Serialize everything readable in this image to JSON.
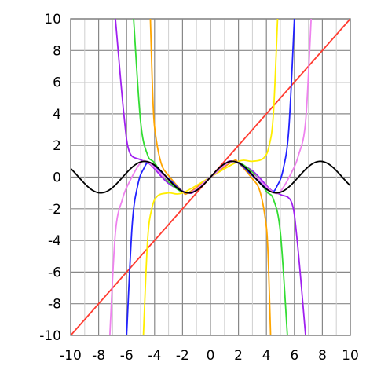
{
  "chart_data": {
    "type": "line",
    "title": "",
    "xlabel": "",
    "ylabel": "",
    "xlim": [
      -10,
      10
    ],
    "ylim": [
      -10,
      10
    ],
    "grid": true,
    "legend": "none",
    "x_ticks": [
      "-10",
      "-8",
      "-6",
      "-4",
      "-2",
      "0",
      "2",
      "4",
      "6",
      "8",
      "10"
    ],
    "y_ticks": [
      "10",
      "8",
      "6",
      "4",
      "2",
      "0",
      "-2",
      "-4",
      "-6",
      "-8",
      "-10"
    ],
    "series": [
      {
        "color": "#ff3b30",
        "points": [
          [
            -10,
            -10
          ],
          [
            -6,
            -6
          ],
          [
            -2,
            -2
          ],
          [
            0,
            0
          ],
          [
            2,
            2
          ],
          [
            6,
            6
          ],
          [
            10,
            10
          ]
        ]
      },
      {
        "color": "#a020f0",
        "points": [
          [
            -6.8,
            10
          ],
          [
            -6.2,
            4
          ],
          [
            -5.8,
            1.6
          ],
          [
            -5,
            1.1
          ],
          [
            -4.3,
            0.8
          ],
          [
            -3,
            -0.4
          ],
          [
            -1.6,
            -1
          ],
          [
            -1,
            -0.8
          ],
          [
            0,
            0
          ],
          [
            1,
            0.8
          ],
          [
            1.6,
            1
          ],
          [
            3,
            0.4
          ],
          [
            4.3,
            -0.8
          ],
          [
            5,
            -1.1
          ],
          [
            5.8,
            -1.6
          ],
          [
            6.2,
            -4
          ],
          [
            6.8,
            -10
          ]
        ]
      },
      {
        "color": "#33dd33",
        "points": [
          [
            -5.5,
            10
          ],
          [
            -5,
            3.5
          ],
          [
            -4.5,
            1.4
          ],
          [
            -4,
            0.9
          ],
          [
            -3,
            -0.3
          ],
          [
            -1.6,
            -1
          ],
          [
            0,
            0
          ],
          [
            1.6,
            1
          ],
          [
            3,
            0.3
          ],
          [
            4,
            -0.9
          ],
          [
            4.5,
            -1.4
          ],
          [
            5,
            -3.5
          ],
          [
            5.5,
            -10
          ]
        ]
      },
      {
        "color": "#ffa500",
        "points": [
          [
            -4.3,
            10
          ],
          [
            -4.1,
            4.5
          ],
          [
            -3.9,
            2.5
          ],
          [
            -3.5,
            0.8
          ],
          [
            -3,
            0.1
          ],
          [
            -2,
            -0.9
          ],
          [
            -1.6,
            -1
          ],
          [
            0,
            0
          ],
          [
            1.6,
            1
          ],
          [
            2,
            0.9
          ],
          [
            3,
            -0.1
          ],
          [
            3.5,
            -0.8
          ],
          [
            3.9,
            -2.5
          ],
          [
            4.1,
            -4.5
          ],
          [
            4.3,
            -10
          ]
        ]
      },
      {
        "color": "#ffee00",
        "points": [
          [
            -4.8,
            -10
          ],
          [
            -4.5,
            -4
          ],
          [
            -4.2,
            -2
          ],
          [
            -3.8,
            -1.2
          ],
          [
            -3,
            -1
          ],
          [
            -2,
            -1
          ],
          [
            0,
            0
          ],
          [
            2,
            1
          ],
          [
            3,
            1
          ],
          [
            3.8,
            1.2
          ],
          [
            4.2,
            2
          ],
          [
            4.5,
            4
          ],
          [
            4.8,
            10
          ]
        ]
      },
      {
        "color": "#2222ff",
        "points": [
          [
            -6,
            -10
          ],
          [
            -5.6,
            -3
          ],
          [
            -5.2,
            -0.5
          ],
          [
            -4.8,
            0.5
          ],
          [
            -4.3,
            0.9
          ],
          [
            -3,
            -0.1
          ],
          [
            -1.6,
            -1
          ],
          [
            0,
            0
          ],
          [
            1.6,
            1
          ],
          [
            3,
            0.1
          ],
          [
            4.3,
            -0.9
          ],
          [
            4.8,
            -0.5
          ],
          [
            5.2,
            0.5
          ],
          [
            5.6,
            3
          ],
          [
            6,
            10
          ]
        ]
      },
      {
        "color": "#ee82ee",
        "points": [
          [
            -7.2,
            -10
          ],
          [
            -6.8,
            -3.5
          ],
          [
            -6.3,
            -1.4
          ],
          [
            -5.8,
            -0.3
          ],
          [
            -5,
            0.9
          ],
          [
            -4.4,
            0.9
          ],
          [
            -3,
            -0.2
          ],
          [
            -1.6,
            -1
          ],
          [
            0,
            0
          ],
          [
            1.6,
            1
          ],
          [
            3,
            0.2
          ],
          [
            4.4,
            -0.9
          ],
          [
            5,
            -0.9
          ],
          [
            5.8,
            0.3
          ],
          [
            6.3,
            1.4
          ],
          [
            6.8,
            3.5
          ],
          [
            7.2,
            10
          ]
        ]
      },
      {
        "color": "#000000",
        "function": "sin",
        "xrange": [
          -10,
          10
        ]
      }
    ]
  }
}
